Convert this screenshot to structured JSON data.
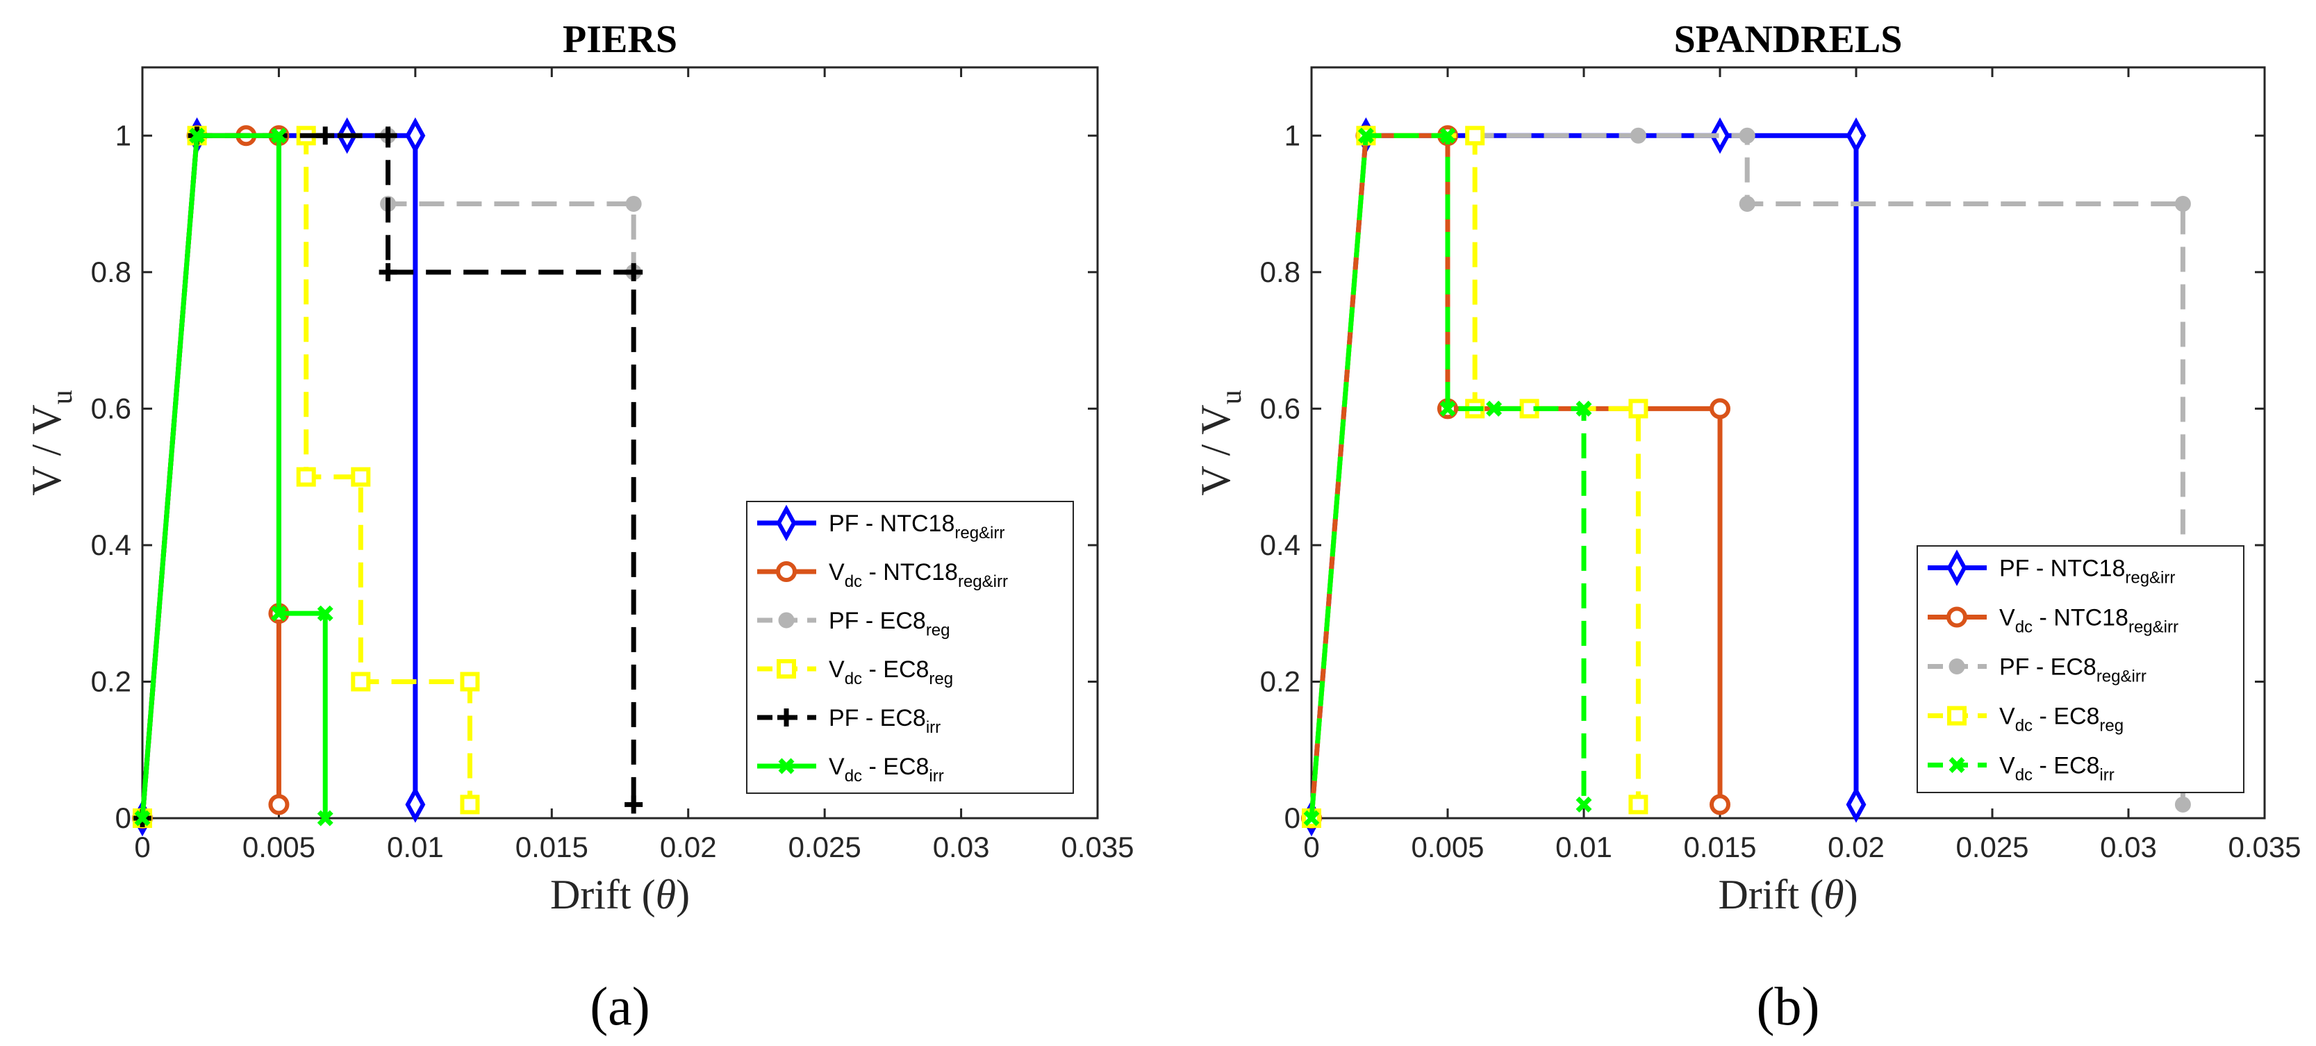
{
  "chart_data": [
    {
      "type": "line",
      "title": "PIERS",
      "caption": "(a)",
      "xlabel": "Drift",
      "xlabel_symbol": "θ",
      "ylabel": "V / V",
      "ylabel_sub": "u",
      "xlim": [
        0,
        0.035
      ],
      "ylim": [
        0,
        1.1
      ],
      "xticks": [
        0,
        0.005,
        0.01,
        0.015,
        0.02,
        0.025,
        0.03,
        0.035
      ],
      "xtick_labels": [
        "0",
        "0.005",
        "0.01",
        "0.015",
        "0.02",
        "0.025",
        "0.03",
        "0.035"
      ],
      "yticks": [
        0,
        0.2,
        0.4,
        0.6,
        0.8,
        1.0
      ],
      "ytick_labels": [
        "0",
        "0.2",
        "0.4",
        "0.6",
        "0.8",
        "1"
      ],
      "legend_position": "bottom-right",
      "series": [
        {
          "name": "PF - NTC18",
          "main": "PF - NTC18",
          "sub": "reg&irr",
          "color": "#0000ff",
          "dash": "solid",
          "marker": "diamond",
          "x": [
            0,
            0.002,
            0.0075,
            0.01,
            0.01
          ],
          "y": [
            0,
            1,
            1,
            1,
            0.02
          ]
        },
        {
          "name": "Vdc - NTC18",
          "main": "V",
          "sub1": "dc",
          "mid": " - NTC18",
          "sub": "reg&irr",
          "color": "#d95319",
          "dash": "solid",
          "marker": "circle",
          "x": [
            0,
            0.002,
            0.0038,
            0.005,
            0.005,
            0.005
          ],
          "y": [
            0,
            1,
            1,
            1,
            0.3,
            0.02
          ]
        },
        {
          "name": "PF - EC8 reg",
          "main": "PF - EC8",
          "sub": "reg",
          "color": "#b4b4b4",
          "dash": "dashed",
          "marker": "dot",
          "x": [
            0,
            0.002,
            0.009,
            0.009,
            0.018,
            0.018
          ],
          "y": [
            0,
            1,
            1,
            0.9,
            0.9,
            0.8
          ]
        },
        {
          "name": "Vdc - EC8 reg",
          "main": "V",
          "sub1": "dc",
          "mid": " - EC8",
          "sub": "reg",
          "color": "#ffff00",
          "dash": "dashed",
          "marker": "square",
          "x": [
            0,
            0.002,
            0.006,
            0.006,
            0.008,
            0.008,
            0.012,
            0.012
          ],
          "y": [
            0,
            1,
            1,
            0.5,
            0.5,
            0.2,
            0.2,
            0.02
          ]
        },
        {
          "name": "PF - EC8 irr",
          "main": "PF - EC8",
          "sub": "irr",
          "color": "#000000",
          "dash": "dashed",
          "marker": "plus",
          "x": [
            0,
            0.002,
            0.0067,
            0.009,
            0.009,
            0.018,
            0.018
          ],
          "y": [
            0,
            1,
            1,
            1,
            0.8,
            0.8,
            0.02
          ]
        },
        {
          "name": "Vdc - EC8 irr",
          "main": "V",
          "sub1": "dc",
          "mid": " - EC8",
          "sub": "irr",
          "color": "#00ff00",
          "dash": "solid",
          "marker": "x",
          "x": [
            0,
            0.002,
            0.005,
            0.005,
            0.0067,
            0.0067
          ],
          "y": [
            0,
            1,
            1,
            0.3,
            0.3,
            0
          ]
        }
      ]
    },
    {
      "type": "line",
      "title": "SPANDRELS",
      "caption": "(b)",
      "xlabel": "Drift",
      "xlabel_symbol": "θ",
      "ylabel": "V / V",
      "ylabel_sub": "u",
      "xlim": [
        0,
        0.035
      ],
      "ylim": [
        0,
        1.1
      ],
      "xticks": [
        0,
        0.005,
        0.01,
        0.015,
        0.02,
        0.025,
        0.03,
        0.035
      ],
      "xtick_labels": [
        "0",
        "0.005",
        "0.01",
        "0.015",
        "0.02",
        "0.025",
        "0.03",
        "0.035"
      ],
      "yticks": [
        0,
        0.2,
        0.4,
        0.6,
        0.8,
        1.0
      ],
      "ytick_labels": [
        "0",
        "0.2",
        "0.4",
        "0.6",
        "0.8",
        "1"
      ],
      "legend_position": "bottom-right",
      "series": [
        {
          "name": "PF - NTC18",
          "main": "PF - NTC18",
          "sub": "reg&irr",
          "color": "#0000ff",
          "dash": "solid",
          "marker": "diamond",
          "x": [
            0,
            0.002,
            0.015,
            0.02,
            0.02
          ],
          "y": [
            0,
            1,
            1,
            1,
            0.02
          ]
        },
        {
          "name": "Vdc - NTC18",
          "main": "V",
          "sub1": "dc",
          "mid": " - NTC18",
          "sub": "reg&irr",
          "color": "#d95319",
          "dash": "solid",
          "marker": "circle",
          "x": [
            0,
            0.002,
            0.005,
            0.005,
            0.015,
            0.015
          ],
          "y": [
            0,
            1,
            1,
            0.6,
            0.6,
            0.02
          ]
        },
        {
          "name": "PF - EC8 reg&irr",
          "main": "PF - EC8",
          "sub": "reg&irr",
          "color": "#b4b4b4",
          "dash": "dashed",
          "marker": "dot",
          "x": [
            0,
            0.002,
            0.012,
            0.016,
            0.016,
            0.032,
            0.032
          ],
          "y": [
            0,
            1,
            1,
            1,
            0.9,
            0.9,
            0.02
          ]
        },
        {
          "name": "Vdc - EC8 reg",
          "main": "V",
          "sub1": "dc",
          "mid": " - EC8",
          "sub": "reg",
          "color": "#ffff00",
          "dash": "dashed",
          "marker": "square",
          "x": [
            0,
            0.002,
            0.006,
            0.006,
            0.008,
            0.012,
            0.012
          ],
          "y": [
            0,
            1,
            1,
            0.6,
            0.6,
            0.6,
            0.02
          ]
        },
        {
          "name": "Vdc - EC8 irr",
          "main": "V",
          "sub1": "dc",
          "mid": " - EC8",
          "sub": "irr",
          "color": "#00ff00",
          "dash": "dashed",
          "marker": "x",
          "x": [
            0,
            0.002,
            0.005,
            0.005,
            0.0067,
            0.01,
            0.01
          ],
          "y": [
            0,
            1,
            1,
            0.6,
            0.6,
            0.6,
            0.02
          ]
        }
      ]
    }
  ]
}
